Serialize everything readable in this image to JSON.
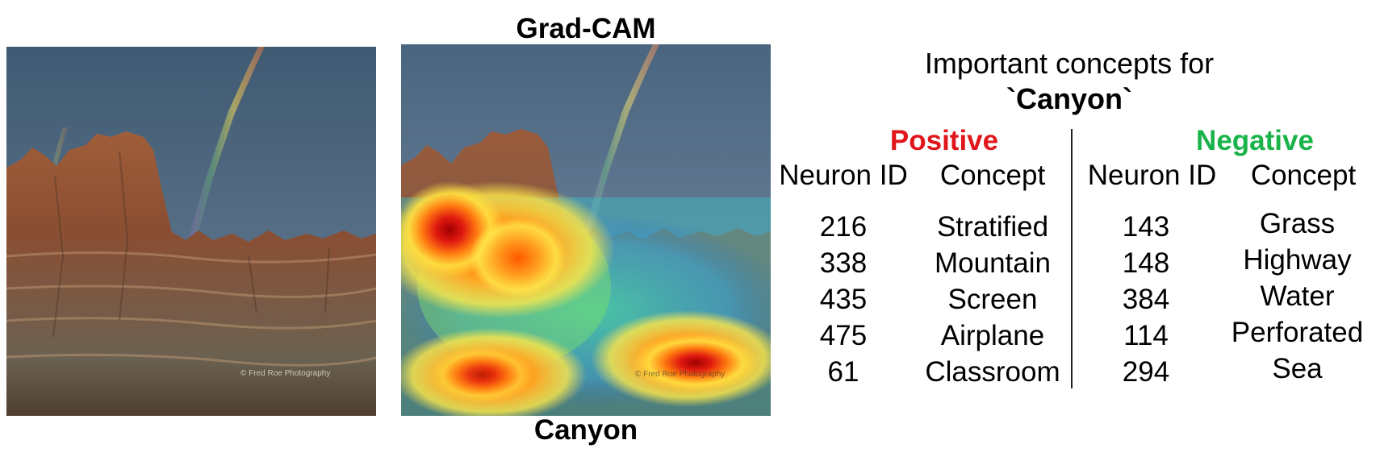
{
  "figure": {
    "gradcam_title": "Grad-CAM",
    "cam_caption": "Canyon",
    "watermark_orig": "© Fred Roe Photography",
    "watermark_cam": "© Fred Roe Photography"
  },
  "concepts": {
    "title_line1": "Important concepts for",
    "title_class": "`Canyon`",
    "positive": {
      "heading": "Positive",
      "color": "#e0161b",
      "col_neuron": "Neuron ID",
      "col_concept": "Concept",
      "rows": [
        {
          "neuron": "216",
          "concept": "Stratified"
        },
        {
          "neuron": "338",
          "concept": "Mountain"
        },
        {
          "neuron": "435",
          "concept": "Screen"
        },
        {
          "neuron": "475",
          "concept": "Airplane"
        },
        {
          "neuron": "61",
          "concept": "Classroom"
        }
      ]
    },
    "negative": {
      "heading": "Negative",
      "color": "#19b34a",
      "col_neuron": "Neuron ID",
      "col_concept": "Concept",
      "rows": [
        {
          "neuron": "143",
          "concept": "Grass"
        },
        {
          "neuron": "148",
          "concept": "Highway"
        },
        {
          "neuron": "384",
          "concept": "Water"
        },
        {
          "neuron": "114",
          "concept": "Perforated"
        },
        {
          "neuron": "294",
          "concept": "Sea"
        }
      ]
    }
  }
}
